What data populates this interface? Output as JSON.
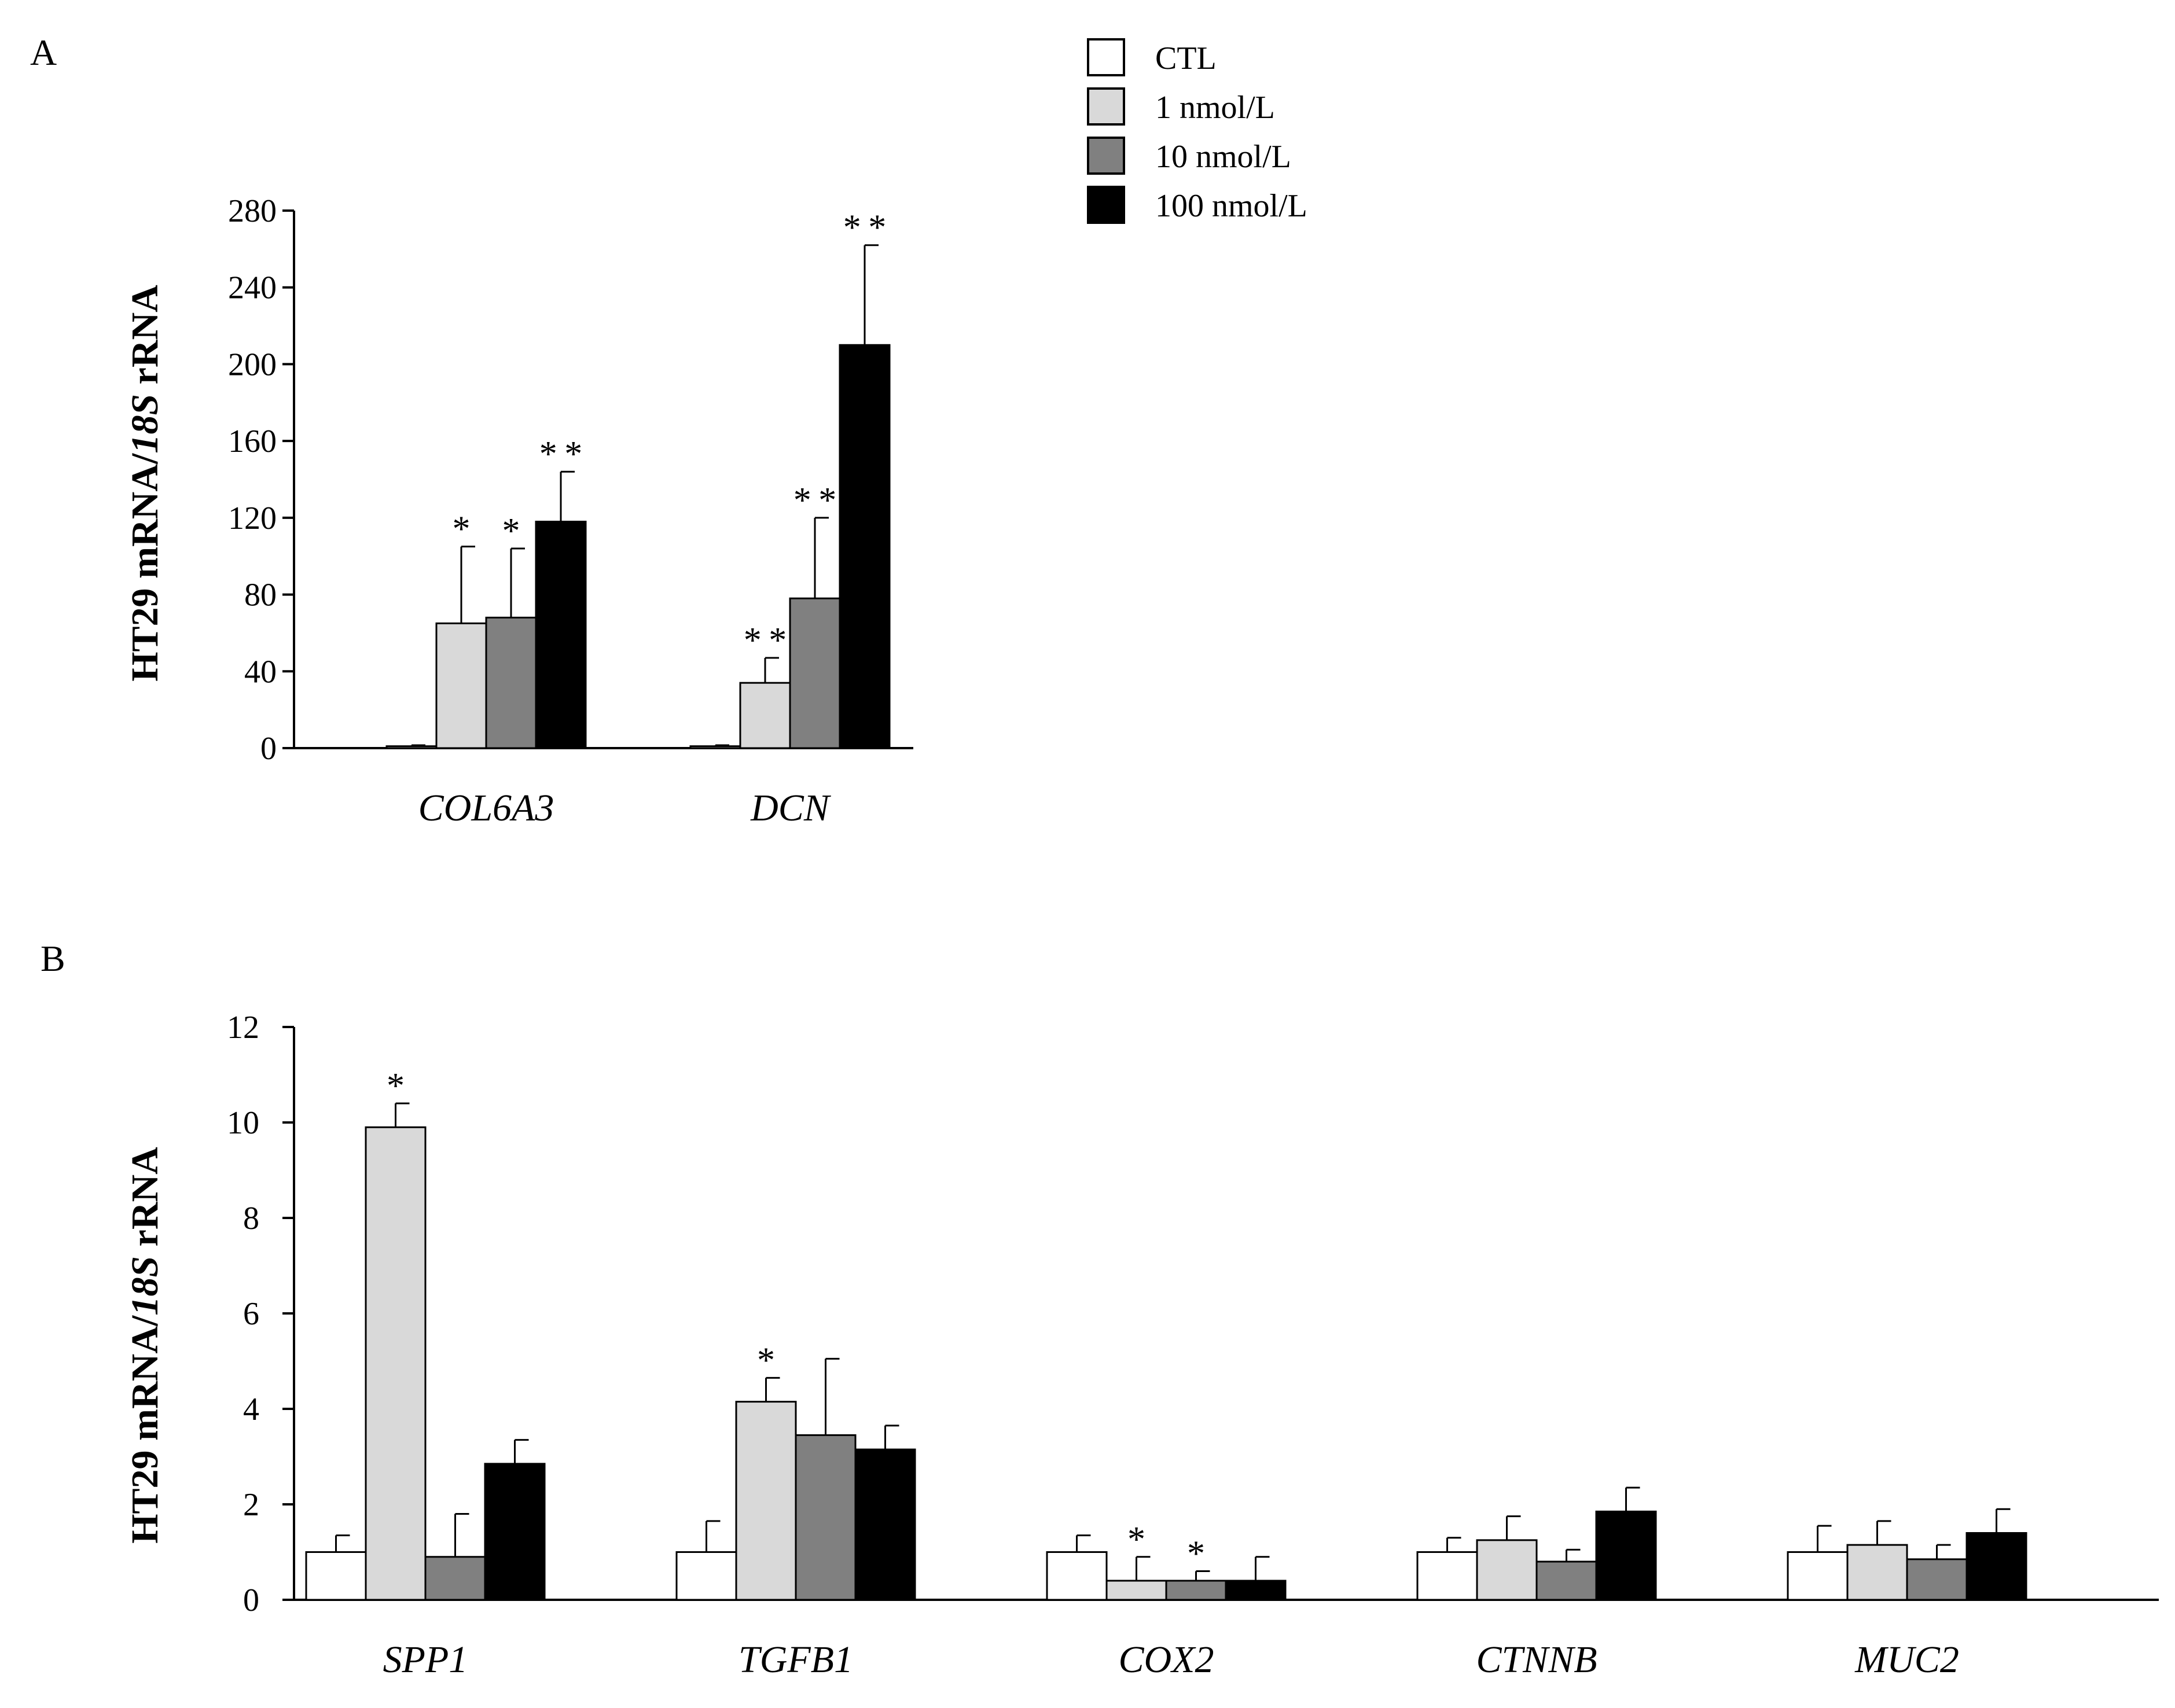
{
  "legend": {
    "items": [
      {
        "label": "CTL",
        "color": "#ffffff"
      },
      {
        "label": "1 nmol/L",
        "color": "#d9d9d9"
      },
      {
        "label": "10 nmol/L",
        "color": "#808080"
      },
      {
        "label": "100 nmol/L",
        "color": "#000000"
      }
    ]
  },
  "chart_data": [
    {
      "panel": "A",
      "type": "bar",
      "ylabel_parts": [
        "HT29 mRNA/",
        "18S",
        " rRNA"
      ],
      "ylim": [
        0,
        280
      ],
      "yticks": [
        0,
        40,
        80,
        120,
        160,
        200,
        240,
        280
      ],
      "categories": [
        "COL6A3",
        "DCN"
      ],
      "series": [
        {
          "name": "CTL",
          "values": [
            1,
            1
          ],
          "errors": [
            0.5,
            0.5
          ],
          "sig": [
            "",
            ""
          ]
        },
        {
          "name": "1 nmol/L",
          "values": [
            65,
            34
          ],
          "errors": [
            40,
            13
          ],
          "sig": [
            "*",
            "**"
          ]
        },
        {
          "name": "10 nmol/L",
          "values": [
            68,
            78
          ],
          "errors": [
            36,
            42
          ],
          "sig": [
            "*",
            "**"
          ]
        },
        {
          "name": "100 nmol/L",
          "values": [
            118,
            210
          ],
          "errors": [
            26,
            52
          ],
          "sig": [
            "**",
            "**"
          ]
        }
      ]
    },
    {
      "panel": "B",
      "type": "bar",
      "ylabel_parts": [
        "HT29 mRNA/",
        "18S",
        " rRNA"
      ],
      "ylim": [
        0,
        12
      ],
      "yticks": [
        0,
        2,
        4,
        6,
        8,
        10,
        12
      ],
      "categories": [
        "SPP1",
        "TGFB1",
        "COX2",
        "CTNNB",
        "MUC2"
      ],
      "series": [
        {
          "name": "CTL",
          "values": [
            1.0,
            1.0,
            1.0,
            1.0,
            1.0
          ],
          "errors": [
            0.35,
            0.65,
            0.35,
            0.3,
            0.55
          ],
          "sig": [
            "",
            "",
            "",
            "",
            ""
          ]
        },
        {
          "name": "1 nmol/L",
          "values": [
            9.9,
            4.15,
            0.4,
            1.25,
            1.15
          ],
          "errors": [
            0.5,
            0.5,
            0.5,
            0.5,
            0.5
          ],
          "sig": [
            "*",
            "*",
            "*",
            "",
            ""
          ]
        },
        {
          "name": "10 nmol/L",
          "values": [
            0.9,
            3.45,
            0.4,
            0.8,
            0.85
          ],
          "errors": [
            0.9,
            1.6,
            0.2,
            0.25,
            0.3
          ],
          "sig": [
            "",
            "",
            "*",
            "",
            ""
          ]
        },
        {
          "name": "100 nmol/L",
          "values": [
            2.85,
            3.15,
            0.4,
            1.85,
            1.4
          ],
          "errors": [
            0.5,
            0.5,
            0.5,
            0.5,
            0.5
          ],
          "sig": [
            "",
            "",
            "",
            "",
            ""
          ]
        }
      ]
    }
  ]
}
